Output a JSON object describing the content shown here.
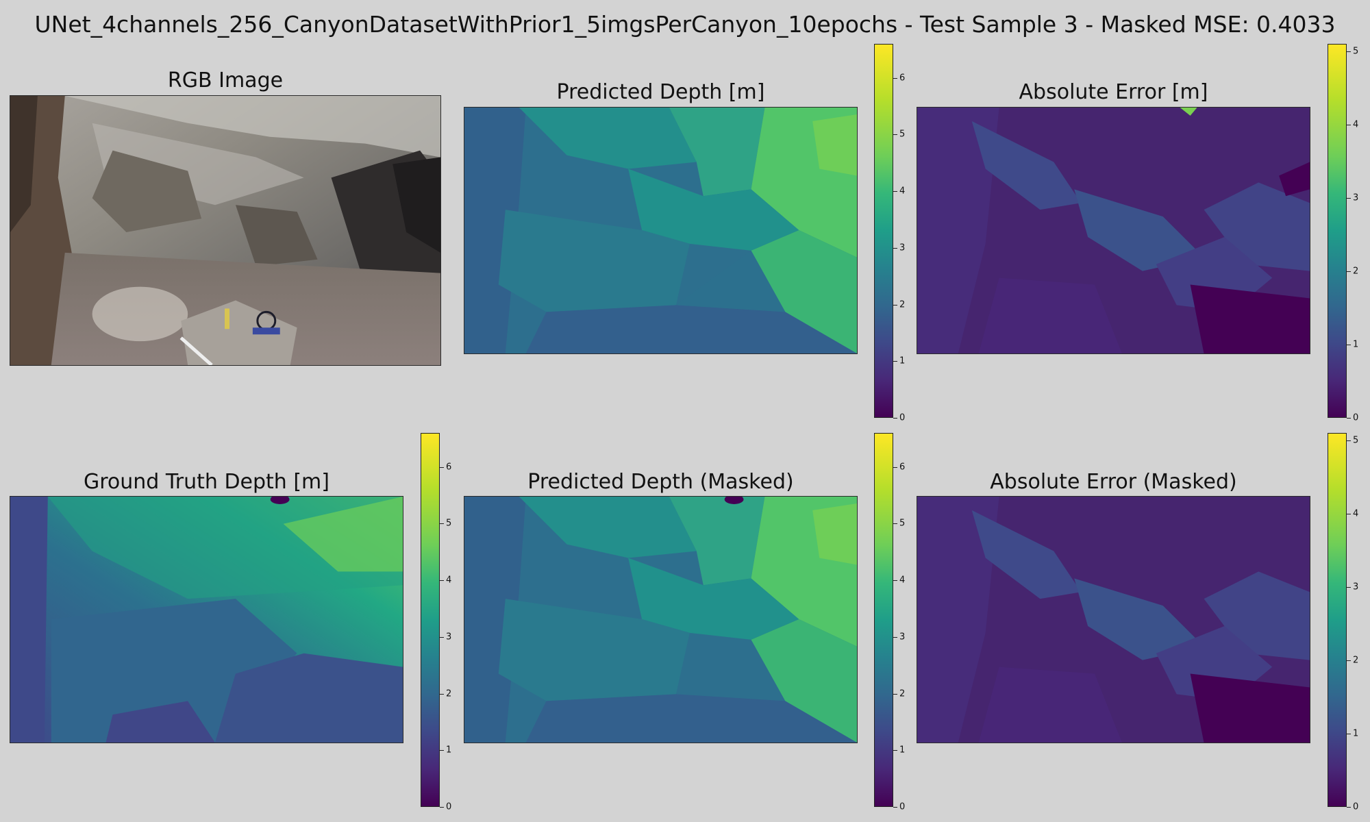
{
  "figure": {
    "title": "UNet_4channels_256_CanyonDatasetWithPrior1_5imgsPerCanyon_10epochs - Test Sample 3 - Masked MSE: 0.4033"
  },
  "panels": {
    "rgb": {
      "title": "RGB Image"
    },
    "pred": {
      "title": "Predicted Depth [m]"
    },
    "err": {
      "title": "Absolute Error [m]"
    },
    "gt": {
      "title": "Ground Truth Depth [m]"
    },
    "pred_masked": {
      "title": "Predicted Depth (Masked)"
    },
    "err_masked": {
      "title": "Absolute Error (Masked)"
    }
  },
  "colors": {
    "colormap": "viridis",
    "background": "#d3d3d3"
  },
  "chart_data": [
    {
      "type": "heatmap",
      "name": "Predicted Depth [m]",
      "colormap": "viridis",
      "colorbar": {
        "vmin": 0,
        "vmax": 6.6,
        "ticks": [
          0,
          1,
          2,
          3,
          4,
          5,
          6
        ]
      }
    },
    {
      "type": "heatmap",
      "name": "Absolute Error [m]",
      "colormap": "viridis",
      "colorbar": {
        "vmin": 0,
        "vmax": 5.1,
        "ticks": [
          0,
          1,
          2,
          3,
          4,
          5
        ]
      }
    },
    {
      "type": "heatmap",
      "name": "Ground Truth Depth [m]",
      "colormap": "viridis",
      "colorbar": {
        "vmin": 0,
        "vmax": 6.6,
        "ticks": [
          0,
          1,
          2,
          3,
          4,
          5,
          6
        ]
      }
    },
    {
      "type": "heatmap",
      "name": "Predicted Depth (Masked)",
      "colormap": "viridis",
      "colorbar": {
        "vmin": 0,
        "vmax": 6.6,
        "ticks": [
          0,
          1,
          2,
          3,
          4,
          5,
          6
        ]
      }
    },
    {
      "type": "heatmap",
      "name": "Absolute Error (Masked)",
      "colormap": "viridis",
      "colorbar": {
        "vmin": 0,
        "vmax": 5.1,
        "ticks": [
          0,
          1,
          2,
          3,
          4,
          5
        ]
      }
    }
  ]
}
